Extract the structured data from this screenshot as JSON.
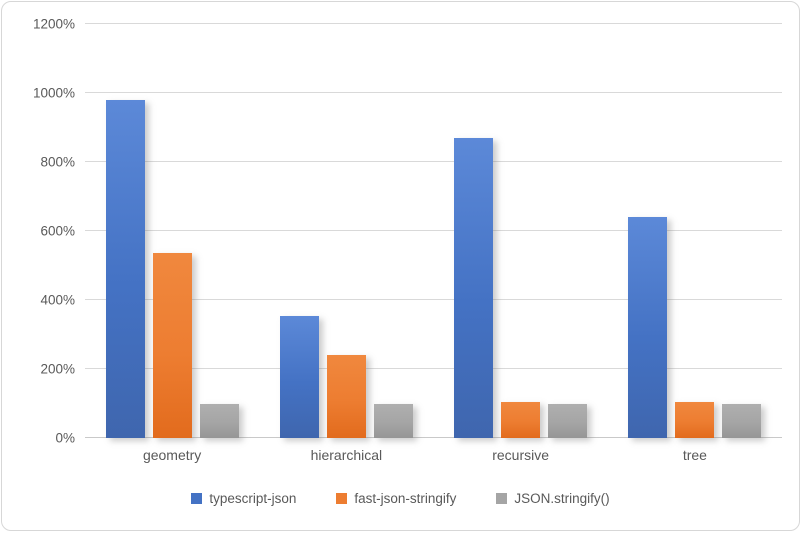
{
  "chart_data": {
    "type": "bar",
    "title": "",
    "xlabel": "",
    "ylabel": "",
    "categories": [
      "geometry",
      "hierarchical",
      "recursive",
      "tree"
    ],
    "series": [
      {
        "name": "typescript-json",
        "color": "#4472C4",
        "gradient": [
          "#5C89D8",
          "#4472C4",
          "#3F66AE"
        ],
        "values": [
          980,
          355,
          870,
          640
        ]
      },
      {
        "name": "fast-json-stringify",
        "color": "#ED7D31",
        "gradient": [
          "#F0883E",
          "#ED7D31",
          "#E26B1D"
        ],
        "values": [
          535,
          240,
          105,
          105
        ]
      },
      {
        "name": "JSON.stringify()",
        "color": "#A5A5A5",
        "gradient": [
          "#AFAFAF",
          "#A5A5A5",
          "#969696"
        ],
        "values": [
          100,
          100,
          100,
          100
        ]
      }
    ],
    "ylim": [
      0,
      1200
    ],
    "y_ticks": [
      {
        "value": 0,
        "label": "0%"
      },
      {
        "value": 200,
        "label": "200%"
      },
      {
        "value": 400,
        "label": "400%"
      },
      {
        "value": 600,
        "label": "600%"
      },
      {
        "value": 800,
        "label": "800%"
      },
      {
        "value": 1000,
        "label": "1000%"
      },
      {
        "value": 1200,
        "label": "1200%"
      }
    ],
    "grid": true,
    "legend_position": "bottom"
  },
  "colors": {
    "grid": "#D9D9D9",
    "axis_text": "#595959",
    "border": "#D7D7D7",
    "background": "#FFFFFF"
  }
}
